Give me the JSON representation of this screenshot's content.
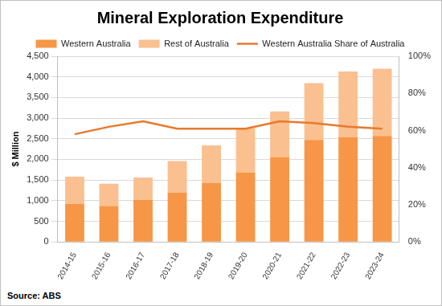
{
  "chart_data": {
    "type": "bar",
    "title": "Mineral Exploration Expenditure",
    "source": "Source: ABS",
    "y_label": "$ Million",
    "categories": [
      "2014-15",
      "2015-16",
      "2016-17",
      "2017-18",
      "2018-19",
      "2019-20",
      "2020-21",
      "2021-22",
      "2022-23",
      "2023-24"
    ],
    "stacked": true,
    "legend": "top",
    "grid": true,
    "data_labels": false,
    "series": [
      {
        "name": "Western Australia",
        "type": "bar",
        "color": "#F79646",
        "values": [
          920,
          870,
          1020,
          1190,
          1430,
          1680,
          2050,
          2470,
          2540,
          2570
        ]
      },
      {
        "name": "Rest of Australia",
        "type": "bar",
        "color": "#FAC090",
        "values": [
          660,
          540,
          540,
          770,
          910,
          1080,
          1110,
          1380,
          1590,
          1630
        ]
      },
      {
        "name": "Western Australia Share of Australia",
        "type": "line",
        "axis": "y2",
        "color": "#E8792B",
        "values": [
          58,
          62,
          65,
          61,
          61,
          61,
          65,
          64,
          62,
          61
        ]
      }
    ],
    "ylim": [
      0,
      4500
    ],
    "yticks": [
      0,
      500,
      {
        "value": 1000,
        "label": "1,000"
      },
      {
        "value": 1500,
        "label": "1,500"
      },
      {
        "value": 2000,
        "label": "2,000"
      },
      {
        "value": 2500,
        "label": "2,500"
      },
      {
        "value": 3000,
        "label": "3,000"
      },
      {
        "value": 3500,
        "label": "3,500"
      },
      {
        "value": 4000,
        "label": "4,000"
      },
      {
        "value": 4500,
        "label": "4,500"
      }
    ],
    "y2lim": [
      0,
      100
    ],
    "y2ticks": [
      {
        "value": 0,
        "label": "0%"
      },
      {
        "value": 20,
        "label": "20%"
      },
      {
        "value": 40,
        "label": "40%"
      },
      {
        "value": 60,
        "label": "60%"
      },
      {
        "value": 80,
        "label": "80%"
      },
      {
        "value": 100,
        "label": "100%"
      }
    ]
  }
}
